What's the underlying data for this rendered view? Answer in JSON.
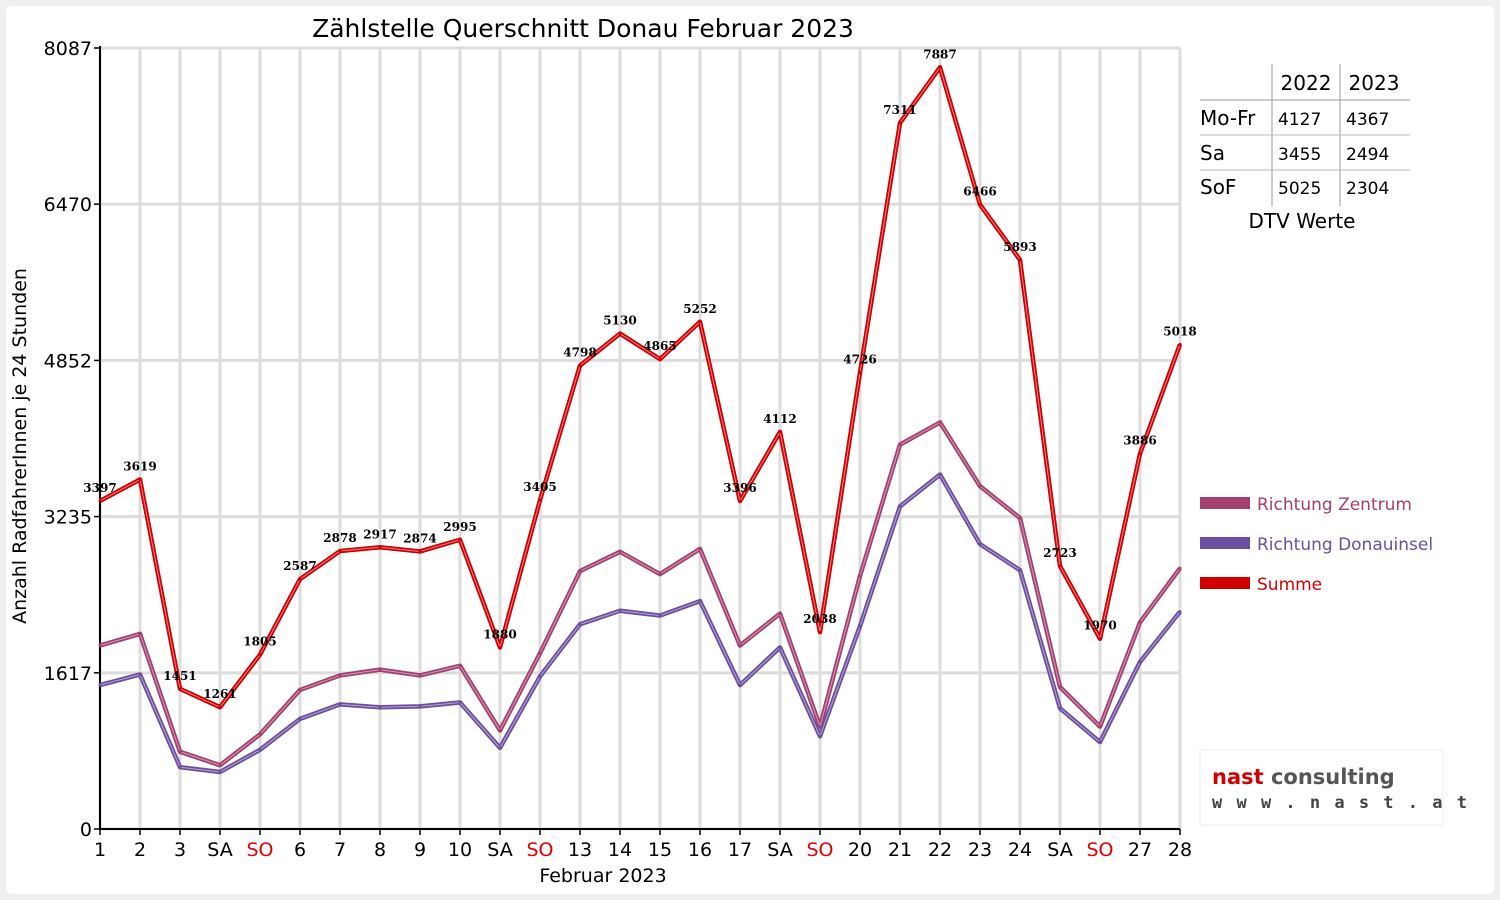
{
  "chart_data": {
    "type": "line",
    "title": "Zählstelle Querschnitt Donau Februar 2023",
    "xlabel": "Februar 2023",
    "ylabel": "Anzahl RadfahrerInnen je 24 Stunden",
    "ylim": [
      0,
      8087
    ],
    "yticks": [
      "0",
      "1617",
      "3235",
      "4852",
      "6470",
      "8087"
    ],
    "grid": true,
    "legend_position": "right",
    "categories": [
      "1",
      "2",
      "3",
      "SA",
      "SO",
      "6",
      "7",
      "8",
      "9",
      "10",
      "SA",
      "SO",
      "13",
      "14",
      "15",
      "16",
      "17",
      "SA",
      "SO",
      "20",
      "21",
      "22",
      "23",
      "24",
      "SA",
      "SO",
      "27",
      "28"
    ],
    "sunday_indices": [
      4,
      11,
      18,
      25
    ],
    "series": [
      {
        "name": "Richtung Zentrum",
        "color": "#a34070",
        "values": [
          1900,
          2020,
          800,
          660,
          980,
          1440,
          1590,
          1650,
          1590,
          1690,
          1020,
          1820,
          2670,
          2870,
          2640,
          2900,
          1900,
          2230,
          1060,
          2620,
          3980,
          4210,
          3550,
          3220,
          1470,
          1060,
          2140,
          2700
        ]
      },
      {
        "name": "Richtung Donauinsel",
        "color": "#6a50a0",
        "values": [
          1490,
          1600,
          640,
          590,
          820,
          1140,
          1290,
          1260,
          1270,
          1310,
          840,
          1580,
          2120,
          2260,
          2210,
          2360,
          1490,
          1880,
          960,
          2100,
          3340,
          3670,
          2950,
          2680,
          1250,
          900,
          1730,
          2250
        ]
      },
      {
        "name": "Summe",
        "color": "#d00000",
        "values": [
          3397,
          3619,
          1451,
          1261,
          1805,
          2587,
          2878,
          2917,
          2874,
          2995,
          1880,
          3405,
          4798,
          5130,
          4865,
          5252,
          3396,
          4112,
          2038,
          4726,
          7311,
          7887,
          6466,
          5893,
          2723,
          1970,
          3886,
          5018
        ],
        "labels": [
          "3397",
          "3619",
          "1451",
          "1261",
          "1805",
          "2587",
          "2878",
          "2917",
          "2874",
          "2995",
          "1880",
          "3405",
          "4798",
          "5130",
          "4865",
          "5252",
          "3396",
          "4112",
          "2038",
          "4726",
          "7311",
          "7887",
          "6466",
          "5893",
          "2723",
          "1970",
          "3886",
          "5018"
        ]
      }
    ]
  },
  "dtv_table": {
    "headers": [
      "2022",
      "2023"
    ],
    "rows": [
      {
        "label": "Mo-Fr",
        "v2022": "4127",
        "v2023": "4367"
      },
      {
        "label": "Sa",
        "v2022": "3455",
        "v2023": "2494"
      },
      {
        "label": "SoF",
        "v2022": "5025",
        "v2023": "2304"
      }
    ],
    "caption": "DTV Werte"
  },
  "logo": {
    "name_part1": "nast",
    "name_part2": "consulting",
    "url": "w w w . n a s t . a t",
    "accent_color": "#d00000"
  }
}
